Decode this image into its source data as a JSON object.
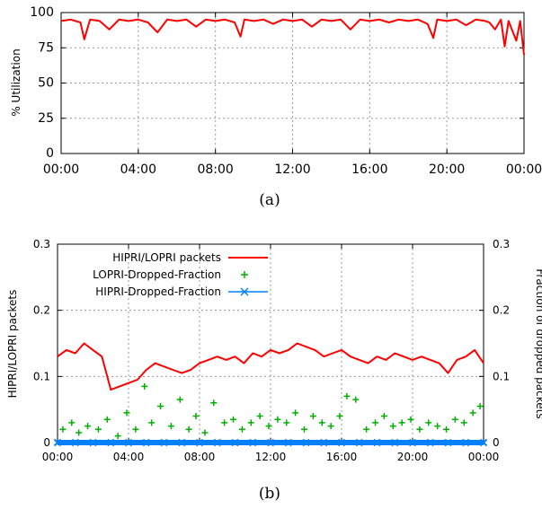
{
  "chart_data": [
    {
      "id": "a",
      "type": "line",
      "caption": "(a)",
      "ylabel": "% Utilization",
      "xlabel": "",
      "xlim": [
        0,
        24
      ],
      "ylim": [
        0,
        100
      ],
      "grid": true,
      "x_ticks": [
        "00:00",
        "04:00",
        "08:00",
        "12:00",
        "16:00",
        "20:00",
        "00:00"
      ],
      "y_ticks": [
        "0",
        "25",
        "50",
        "75",
        "100"
      ],
      "series": [
        {
          "name": "",
          "color": "#ff0000",
          "x": [
            0,
            0.5,
            1.0,
            1.2,
            1.5,
            2.0,
            2.5,
            3.0,
            3.5,
            4.0,
            4.5,
            5.0,
            5.5,
            6.0,
            6.5,
            7.0,
            7.5,
            8.0,
            8.5,
            9.0,
            9.3,
            9.5,
            10.0,
            10.5,
            11.0,
            11.5,
            12.0,
            12.5,
            13.0,
            13.5,
            14.0,
            14.5,
            15.0,
            15.5,
            16.0,
            16.5,
            17.0,
            17.5,
            18.0,
            18.5,
            19.0,
            19.3,
            19.5,
            20.0,
            20.5,
            21.0,
            21.5,
            22.0,
            22.2,
            22.5,
            22.8,
            23.0,
            23.2,
            23.4,
            23.6,
            23.8,
            24.0
          ],
          "values": [
            94,
            95,
            93,
            81,
            95,
            94,
            88,
            95,
            94,
            95,
            93,
            86,
            95,
            94,
            95,
            90,
            95,
            94,
            95,
            93,
            83,
            95,
            94,
            95,
            92,
            95,
            94,
            95,
            90,
            95,
            94,
            95,
            88,
            95,
            94,
            95,
            93,
            95,
            94,
            95,
            92,
            82,
            95,
            94,
            95,
            91,
            95,
            94,
            93,
            88,
            95,
            76,
            94,
            87,
            80,
            94,
            70
          ]
        }
      ]
    },
    {
      "id": "b",
      "type": "line",
      "caption": "(b)",
      "ylabel": "HIPRI/LOPRI packets",
      "y2label": "Fraction of dropped packets",
      "xlim": [
        0,
        24
      ],
      "ylim": [
        0,
        0.3
      ],
      "y2lim": [
        0,
        0.3
      ],
      "grid": true,
      "legend": "top-left",
      "x_ticks": [
        "00:00",
        "04:00",
        "08:00",
        "12:00",
        "16:00",
        "20:00",
        "00:00"
      ],
      "y_ticks": [
        "0",
        "0.1",
        "0.2",
        "0.3"
      ],
      "y2_ticks": [
        "0",
        "0.1",
        "0.2",
        "0.3"
      ],
      "series": [
        {
          "name": "HIPRI/LOPRI packets",
          "color": "#ff0000",
          "style": "line",
          "x": [
            0,
            0.5,
            1.0,
            1.5,
            2.0,
            2.5,
            2.8,
            3.0,
            3.5,
            4.0,
            4.5,
            5.0,
            5.5,
            6.0,
            6.5,
            7.0,
            7.5,
            8.0,
            8.5,
            9.0,
            9.5,
            10.0,
            10.5,
            11.0,
            11.5,
            12.0,
            12.5,
            13.0,
            13.5,
            14.0,
            14.5,
            15.0,
            15.5,
            16.0,
            16.5,
            17.0,
            17.5,
            18.0,
            18.5,
            19.0,
            19.5,
            20.0,
            20.5,
            21.0,
            21.5,
            22.0,
            22.5,
            23.0,
            23.5,
            24.0
          ],
          "values": [
            0.13,
            0.14,
            0.135,
            0.15,
            0.14,
            0.13,
            0.1,
            0.08,
            0.085,
            0.09,
            0.095,
            0.11,
            0.12,
            0.115,
            0.11,
            0.105,
            0.11,
            0.12,
            0.125,
            0.13,
            0.125,
            0.13,
            0.12,
            0.135,
            0.13,
            0.14,
            0.135,
            0.14,
            0.15,
            0.145,
            0.14,
            0.13,
            0.135,
            0.14,
            0.13,
            0.125,
            0.12,
            0.13,
            0.125,
            0.135,
            0.13,
            0.125,
            0.13,
            0.125,
            0.12,
            0.105,
            0.125,
            0.13,
            0.14,
            0.12
          ]
        },
        {
          "name": "LOPRI-Dropped-Fraction",
          "color": "#00b000",
          "style": "points",
          "x": [
            0.3,
            0.8,
            1.2,
            1.7,
            2.3,
            2.8,
            3.4,
            3.9,
            4.4,
            4.9,
            5.3,
            5.8,
            6.4,
            6.9,
            7.4,
            7.8,
            8.3,
            8.8,
            9.4,
            9.9,
            10.4,
            10.9,
            11.4,
            11.9,
            12.4,
            12.9,
            13.4,
            13.9,
            14.4,
            14.9,
            15.4,
            15.9,
            16.3,
            16.8,
            17.4,
            17.9,
            18.4,
            18.9,
            19.4,
            19.9,
            20.4,
            20.9,
            21.4,
            21.9,
            22.4,
            22.9,
            23.4,
            23.8
          ],
          "values": [
            0.02,
            0.03,
            0.015,
            0.025,
            0.02,
            0.035,
            0.01,
            0.045,
            0.02,
            0.085,
            0.03,
            0.055,
            0.025,
            0.065,
            0.02,
            0.04,
            0.015,
            0.06,
            0.03,
            0.035,
            0.02,
            0.03,
            0.04,
            0.025,
            0.035,
            0.03,
            0.045,
            0.02,
            0.04,
            0.03,
            0.025,
            0.04,
            0.07,
            0.065,
            0.02,
            0.03,
            0.04,
            0.025,
            0.03,
            0.035,
            0.02,
            0.03,
            0.025,
            0.02,
            0.035,
            0.03,
            0.045,
            0.055
          ]
        },
        {
          "name": "HIPRI-Dropped-Fraction",
          "color": "#0080ff",
          "style": "points",
          "x": [
            0,
            1,
            2,
            3,
            4,
            5,
            6,
            7,
            8,
            9,
            10,
            11,
            12,
            13,
            14,
            15,
            16,
            17,
            18,
            19,
            20,
            21,
            22,
            23,
            24
          ],
          "values": [
            0,
            0,
            0,
            0,
            0,
            0,
            0,
            0,
            0,
            0,
            0,
            0,
            0,
            0,
            0,
            0,
            0,
            0,
            0,
            0,
            0,
            0,
            0,
            0,
            0
          ]
        }
      ]
    }
  ]
}
